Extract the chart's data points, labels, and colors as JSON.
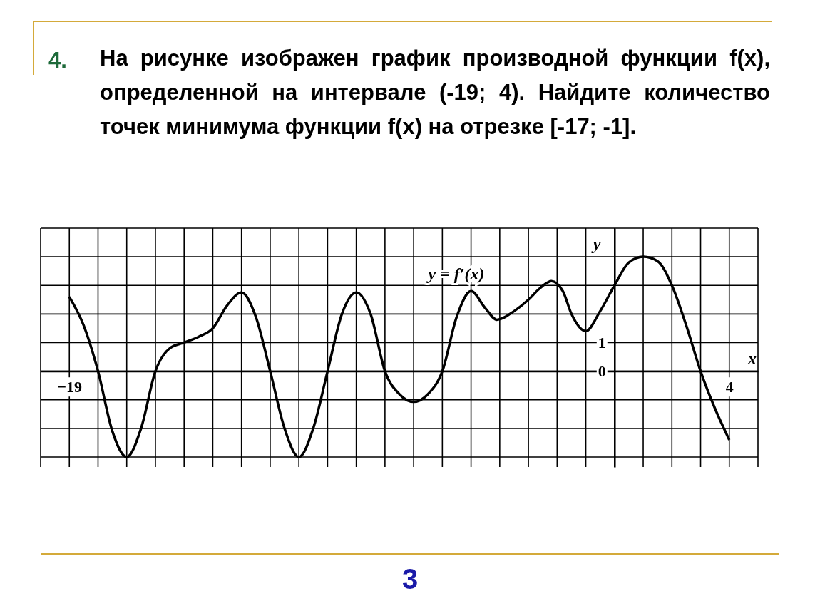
{
  "chart_data": {
    "type": "line",
    "title": "На рисунке изображен график производной функции f(x), определенной на интервале (-19; 4). Найдите количество точек минимума функции f(x) на отрезке [-17; -1].",
    "xlabel": "x",
    "ylabel": "y",
    "annotations": [
      "y = f′(x)",
      "4.",
      "3"
    ],
    "series": [
      {
        "color": "#000000",
        "x": [
          -19,
          -18.5,
          -18,
          -17.5,
          -17,
          -16.5,
          -16,
          -15.5,
          -15,
          -14.5,
          -14,
          -13.5,
          -13,
          -12.5,
          -12,
          -11.5,
          -11,
          -10.5,
          -10,
          -9.5,
          -9,
          -8.5,
          -8,
          -7.5,
          -7,
          -6.5,
          -6,
          -5.5,
          -5,
          -4.5,
          -4.1,
          -3.5,
          -3,
          -2.6,
          -2.2,
          -1.8,
          -1.5,
          -1,
          -0.5,
          0,
          0.5,
          1,
          1.5,
          2,
          2.5,
          3,
          3.5,
          4
        ],
        "values": [
          2.6,
          1.6,
          0,
          -2.1,
          -3,
          -2,
          0,
          0.8,
          1,
          1.2,
          1.5,
          2.3,
          2.75,
          1.9,
          0,
          -2,
          -3,
          -2,
          0,
          2,
          2.75,
          2,
          0,
          -0.8,
          -1.07,
          -0.8,
          0,
          1.9,
          2.8,
          2.2,
          1.8,
          2.1,
          2.5,
          2.9,
          3.15,
          2.8,
          2,
          1.4,
          2.1,
          3,
          3.8,
          4,
          3.85,
          3,
          1.6,
          0,
          -1.3,
          -2.4
        ]
      }
    ],
    "xlim": [
      -20,
      5
    ],
    "ylim": [
      -3.35,
      5
    ],
    "xticks": [
      {
        "value": -20,
        "label": null
      },
      {
        "value": -19,
        "label": "−19"
      },
      {
        "value": -18,
        "label": null
      },
      {
        "value": -17,
        "label": null
      },
      {
        "value": -16,
        "label": null
      },
      {
        "value": -15,
        "label": null
      },
      {
        "value": -14,
        "label": null
      },
      {
        "value": -13,
        "label": null
      },
      {
        "value": -12,
        "label": null
      },
      {
        "value": -11,
        "label": null
      },
      {
        "value": -10,
        "label": null
      },
      {
        "value": -9,
        "label": null
      },
      {
        "value": -8,
        "label": null
      },
      {
        "value": -7,
        "label": null
      },
      {
        "value": -6,
        "label": null
      },
      {
        "value": -5,
        "label": null
      },
      {
        "value": -4,
        "label": null
      },
      {
        "value": -3,
        "label": null
      },
      {
        "value": -2,
        "label": null
      },
      {
        "value": -1,
        "label": null
      },
      {
        "value": 0,
        "label": null
      },
      {
        "value": 1,
        "label": null
      },
      {
        "value": 2,
        "label": null
      },
      {
        "value": 3,
        "label": null
      },
      {
        "value": 4,
        "label": "4"
      },
      {
        "value": 5,
        "label": null
      }
    ],
    "yticks": [
      {
        "value": -3,
        "label": null
      },
      {
        "value": -2,
        "label": null
      },
      {
        "value": -1,
        "label": null
      },
      {
        "value": 0,
        "label": "0"
      },
      {
        "value": 1,
        "label": "1"
      },
      {
        "value": 2,
        "label": null
      },
      {
        "value": 3,
        "label": null
      },
      {
        "value": 4,
        "label": null
      },
      {
        "value": 5,
        "label": null
      }
    ],
    "grid": true,
    "line_style": "solid"
  }
}
